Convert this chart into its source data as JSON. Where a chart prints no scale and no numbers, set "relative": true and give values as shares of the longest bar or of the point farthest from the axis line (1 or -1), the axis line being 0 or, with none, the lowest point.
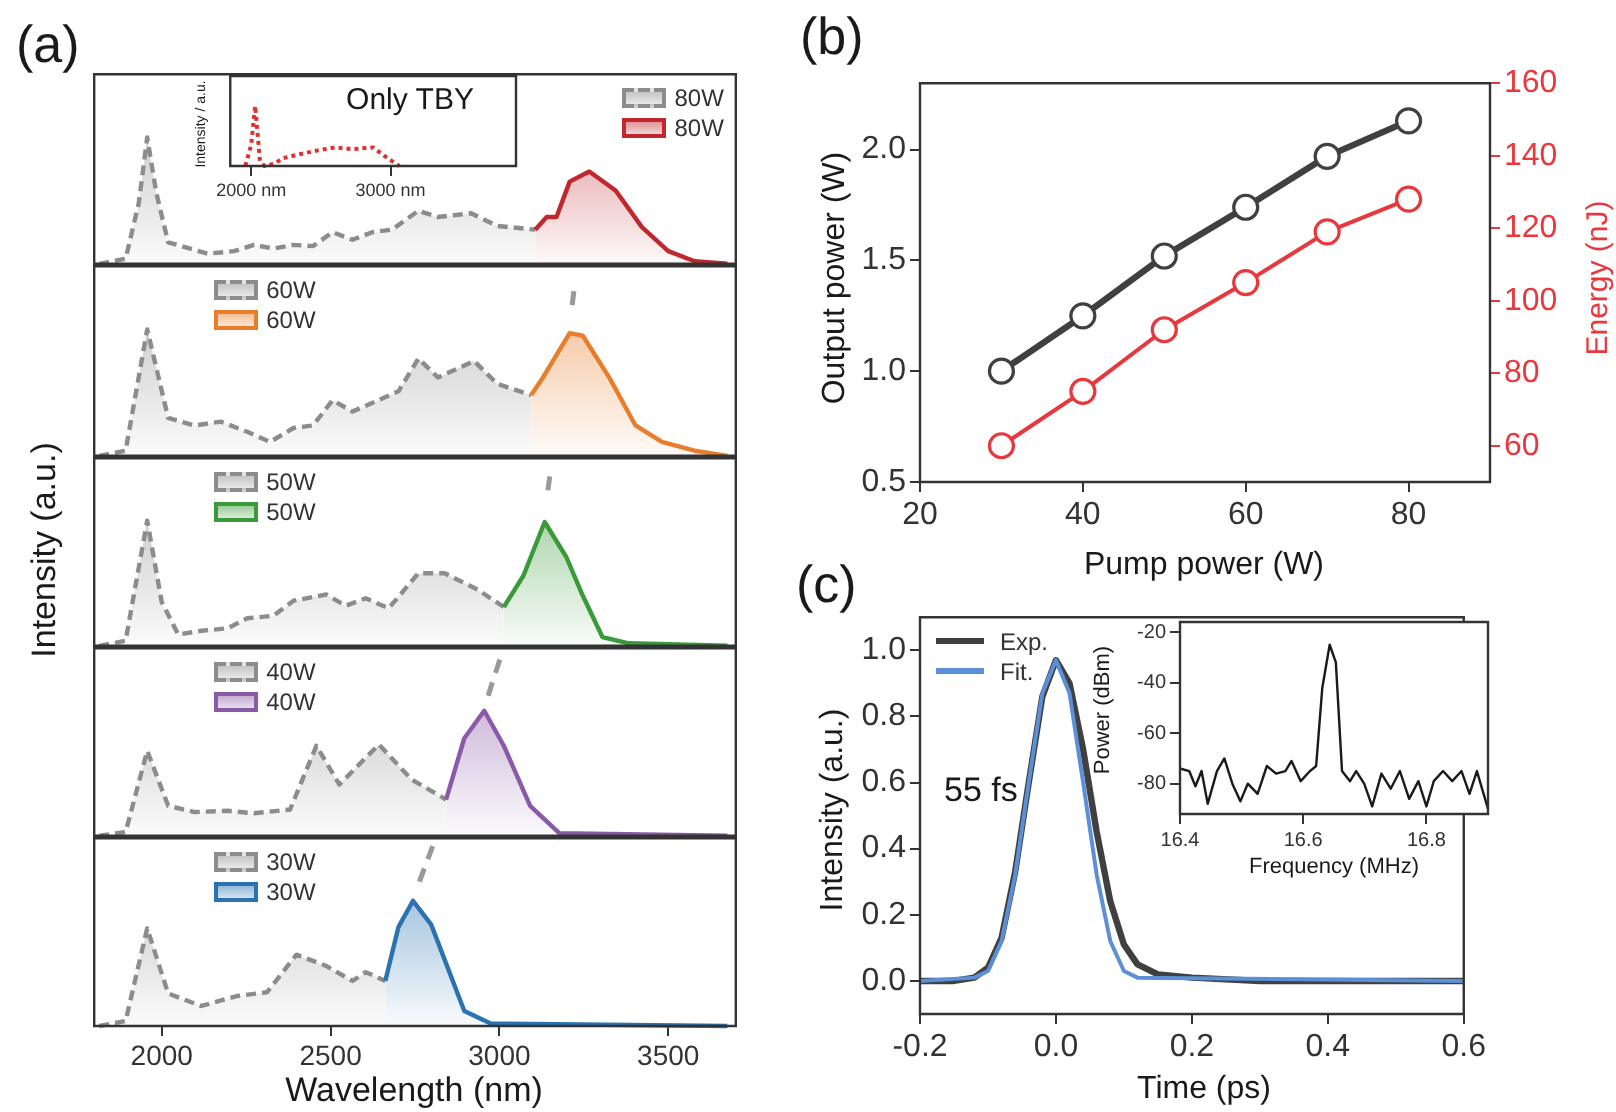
{
  "chart_data": [
    {
      "type": "area",
      "title": "(a)",
      "relative": true,
      "xlim": [
        1800,
        3700
      ],
      "xticks": [
        2000,
        2500,
        3000,
        3500
      ],
      "tick_labels": false,
      "legend": "top right",
      "series": [
        {
          "name": "80W",
          "color": "#8c8c8c",
          "line_style": "dashed",
          "x": [
            1815,
            1893,
            1932,
            1957,
            1984,
            2019,
            2136,
            2214,
            2273,
            2331,
            2390,
            2448,
            2506,
            2565,
            2623,
            2682,
            2760,
            2818,
            2916,
            2993,
            3106
          ],
          "values": [
            0,
            0.04,
            0.48,
            1,
            0.56,
            0.17,
            0.08,
            0.1,
            0.15,
            0.12,
            0.15,
            0.14,
            0.25,
            0.19,
            0.25,
            0.27,
            0.42,
            0.37,
            0.4,
            0.3,
            0.27
          ]
        },
        {
          "name": "80W",
          "color": "#c0282e",
          "line_style": "solid",
          "x": [
            3106,
            3140,
            3169,
            3208,
            3266,
            3344,
            3422,
            3500,
            3578,
            3675
          ],
          "values": [
            0.27,
            0.37,
            0.37,
            0.65,
            0.73,
            0.58,
            0.29,
            0.1,
            0.02,
            0
          ]
        }
      ]
    },
    {
      "type": "area",
      "relative": true,
      "xlim": [
        1800,
        3700
      ],
      "xticks": [
        2000,
        2500,
        3000,
        3500
      ],
      "tick_labels": false,
      "legend": "top left",
      "series": [
        {
          "name": "60W",
          "color": "#8c8c8c",
          "line_style": "dashed",
          "x": [
            1815,
            1893,
            1957,
            2019,
            2097,
            2175,
            2253,
            2321,
            2390,
            2448,
            2506,
            2565,
            2701,
            2760,
            2818,
            2925,
            2993,
            3094
          ],
          "values": [
            0,
            0.04,
            1,
            0.3,
            0.24,
            0.27,
            0.19,
            0.11,
            0.22,
            0.24,
            0.44,
            0.35,
            0.51,
            0.77,
            0.62,
            0.75,
            0.57,
            0.48
          ]
        },
        {
          "name": "60W",
          "color": "#e87e2c",
          "line_style": "solid",
          "x": [
            3094,
            3129,
            3208,
            3247,
            3325,
            3403,
            3481,
            3578,
            3675
          ],
          "values": [
            0.48,
            0.62,
            0.97,
            0.95,
            0.62,
            0.24,
            0.11,
            0.04,
            0
          ]
        }
      ]
    },
    {
      "type": "area",
      "ylabel": "Intensity (a.u.)",
      "relative": true,
      "xlim": [
        1800,
        3700
      ],
      "xticks": [
        2000,
        2500,
        3000,
        3500
      ],
      "tick_labels": false,
      "legend": "top left",
      "series": [
        {
          "name": "50W",
          "color": "#8c8c8c",
          "line_style": "dashed",
          "x": [
            1815,
            1893,
            1957,
            2000,
            2049,
            2117,
            2195,
            2253,
            2331,
            2390,
            2487,
            2545,
            2604,
            2672,
            2760,
            2838,
            2935,
            3013
          ],
          "values": [
            0,
            0.04,
            1,
            0.35,
            0.09,
            0.12,
            0.14,
            0.22,
            0.24,
            0.36,
            0.41,
            0.32,
            0.38,
            0.3,
            0.58,
            0.58,
            0.45,
            0.31
          ]
        },
        {
          "name": "50W",
          "color": "#3a9a3a",
          "line_style": "solid",
          "x": [
            3013,
            3071,
            3134,
            3198,
            3247,
            3305,
            3383,
            3675
          ],
          "values": [
            0.31,
            0.56,
            0.99,
            0.71,
            0.4,
            0.07,
            0.02,
            0
          ]
        }
      ]
    },
    {
      "type": "area",
      "relative": true,
      "xlim": [
        1800,
        3700
      ],
      "xticks": [
        2000,
        2500,
        3000,
        3500
      ],
      "tick_labels": false,
      "legend": "top left",
      "series": [
        {
          "name": "40W",
          "color": "#8c8c8c",
          "line_style": "dashed",
          "x": [
            1815,
            1893,
            1957,
            2019,
            2097,
            2195,
            2273,
            2380,
            2458,
            2526,
            2643,
            2740,
            2842
          ],
          "values": [
            0,
            0.03,
            0.68,
            0.24,
            0.19,
            0.2,
            0.18,
            0.21,
            0.72,
            0.41,
            0.73,
            0.45,
            0.29
          ]
        },
        {
          "name": "40W",
          "color": "#8a5aa8",
          "line_style": "solid",
          "x": [
            2842,
            2896,
            2955,
            3013,
            3091,
            3178,
            3675
          ],
          "values": [
            0.29,
            0.78,
            1,
            0.72,
            0.24,
            0.02,
            0
          ]
        }
      ]
    },
    {
      "type": "area",
      "xlabel": "Wavelength (nm)",
      "relative": true,
      "xlim": [
        1800,
        3700
      ],
      "xticks": [
        2000,
        2500,
        3000,
        3500
      ],
      "tick_labels": "x",
      "legend": "top left",
      "series": [
        {
          "name": "30W",
          "color": "#8c8c8c",
          "line_style": "dashed",
          "x": [
            1815,
            1893,
            1957,
            2019,
            2117,
            2224,
            2312,
            2399,
            2487,
            2565,
            2604,
            2662
          ],
          "values": [
            0,
            0.04,
            0.78,
            0.26,
            0.16,
            0.24,
            0.27,
            0.57,
            0.48,
            0.36,
            0.43,
            0.36
          ]
        },
        {
          "name": "30W",
          "color": "#2a73b0",
          "line_style": "solid",
          "x": [
            2662,
            2701,
            2744,
            2798,
            2896,
            2974,
            3675
          ],
          "values": [
            0.36,
            0.79,
            1,
            0.81,
            0.12,
            0.02,
            0
          ]
        }
      ]
    },
    {
      "type": "line",
      "title": "Only TBY",
      "ylabel": "Intensity / a.u.",
      "relative": true,
      "xlim": [
        1850,
        3900
      ],
      "xticks": [
        {
          "value": 2000,
          "label": "2000 nm"
        },
        {
          "value": 3000,
          "label": "3000 nm"
        }
      ],
      "tick_labels": "x",
      "series": [
        {
          "color": "#e03030",
          "line_style": "dotted",
          "x": [
            1958,
            2000,
            2029,
            2063,
            2096,
            2167,
            2229,
            2354,
            2479,
            2604,
            2729,
            2875,
            2979,
            3063
          ],
          "values": [
            0,
            0.35,
            1,
            0.08,
            0,
            0.04,
            0.13,
            0.2,
            0.26,
            0.31,
            0.28,
            0.31,
            0.13,
            0
          ]
        }
      ]
    },
    {
      "type": "line",
      "title": "(b)",
      "xlabel": "Pump power (W)",
      "ylabel": "Output power (W)",
      "y2label": "Energy (nJ)",
      "marker": "circle",
      "x": [
        30,
        40,
        50,
        60,
        70,
        80
      ],
      "xlim": [
        20,
        90
      ],
      "xticks": [
        20,
        40,
        60,
        80
      ],
      "ylim": [
        0.5,
        2.3
      ],
      "yticks": [
        0.5,
        {
          "value": 1,
          "label": "1.0"
        },
        1.5,
        {
          "value": 2,
          "label": "2.0"
        }
      ],
      "y2lim": [
        50,
        160
      ],
      "y2ticks": [
        60,
        80,
        100,
        120,
        140,
        160
      ],
      "series": [
        {
          "color": "#404040",
          "values": [
            1.0,
            1.25,
            1.52,
            1.74,
            1.97,
            2.13
          ]
        },
        {
          "color": "#e8383d",
          "axis": "y2",
          "values": [
            60,
            75,
            92,
            105,
            119,
            128
          ]
        }
      ]
    },
    {
      "type": "line",
      "title": "(c)",
      "xlabel": "Time (ps)",
      "ylabel": "Intensity (a.u.)",
      "legend": "top left",
      "annotations": [
        "55 fs"
      ],
      "xlim": [
        -0.2,
        0.6
      ],
      "xticks": [
        -0.2,
        {
          "value": 0,
          "label": "0.0"
        },
        0.2,
        0.4,
        0.6
      ],
      "ylim": [
        -0.1,
        1.1
      ],
      "yticks": [
        {
          "value": 0,
          "label": "0.0"
        },
        0.2,
        0.4,
        0.6,
        0.8,
        {
          "value": 1,
          "label": "1.0"
        }
      ],
      "series": [
        {
          "name": "Exp.",
          "color": "#404040",
          "x": [
            -0.2,
            -0.15,
            -0.12,
            -0.1,
            -0.08,
            -0.06,
            -0.04,
            -0.02,
            0,
            0.02,
            0.04,
            0.06,
            0.08,
            0.1,
            0.12,
            0.15,
            0.2,
            0.3,
            0.6
          ],
          "values": [
            0,
            0,
            0.01,
            0.04,
            0.13,
            0.33,
            0.6,
            0.86,
            0.97,
            0.9,
            0.7,
            0.45,
            0.24,
            0.11,
            0.05,
            0.02,
            0.01,
            0,
            0
          ]
        },
        {
          "name": "Fit.",
          "color": "#5b8fd6",
          "x": [
            -0.2,
            -0.12,
            -0.1,
            -0.08,
            -0.06,
            -0.04,
            -0.02,
            0,
            0.02,
            0.04,
            0.06,
            0.08,
            0.1,
            0.12,
            0.6
          ],
          "values": [
            0,
            0.01,
            0.03,
            0.12,
            0.32,
            0.6,
            0.87,
            0.97,
            0.87,
            0.6,
            0.32,
            0.12,
            0.03,
            0.01,
            0
          ]
        }
      ]
    },
    {
      "type": "line",
      "xlabel": "Frequency (MHz)",
      "ylabel": "Power (dBm)",
      "xlim": [
        16.4,
        16.9
      ],
      "xticks": [
        16.4,
        16.6,
        16.8
      ],
      "ylim": [
        -92,
        -16
      ],
      "yticks": [
        -20,
        -40,
        -60,
        -80
      ],
      "series": [
        {
          "color": "#1a1a1a",
          "x": [
            16.4,
            16.415,
            16.425,
            16.435,
            16.445,
            16.46,
            16.472,
            16.485,
            16.498,
            16.51,
            16.526,
            16.541,
            16.556,
            16.571,
            16.581,
            16.596,
            16.611,
            16.621,
            16.631,
            16.643,
            16.653,
            16.663,
            16.676,
            16.686,
            16.699,
            16.712,
            16.727,
            16.742,
            16.757,
            16.772,
            16.787,
            16.8,
            16.812,
            16.827,
            16.842,
            16.857,
            16.87,
            16.882,
            16.9
          ],
          "values": [
            -74,
            -75,
            -81,
            -75,
            -88,
            -75,
            -70,
            -80,
            -87,
            -80,
            -84,
            -73,
            -76,
            -75,
            -71,
            -79,
            -75,
            -73,
            -42,
            -25,
            -32,
            -75,
            -79,
            -75,
            -80,
            -89,
            -76,
            -82,
            -75,
            -86,
            -79,
            -89,
            -79,
            -75,
            -79,
            -75,
            -84,
            -75,
            -90
          ]
        }
      ]
    }
  ]
}
